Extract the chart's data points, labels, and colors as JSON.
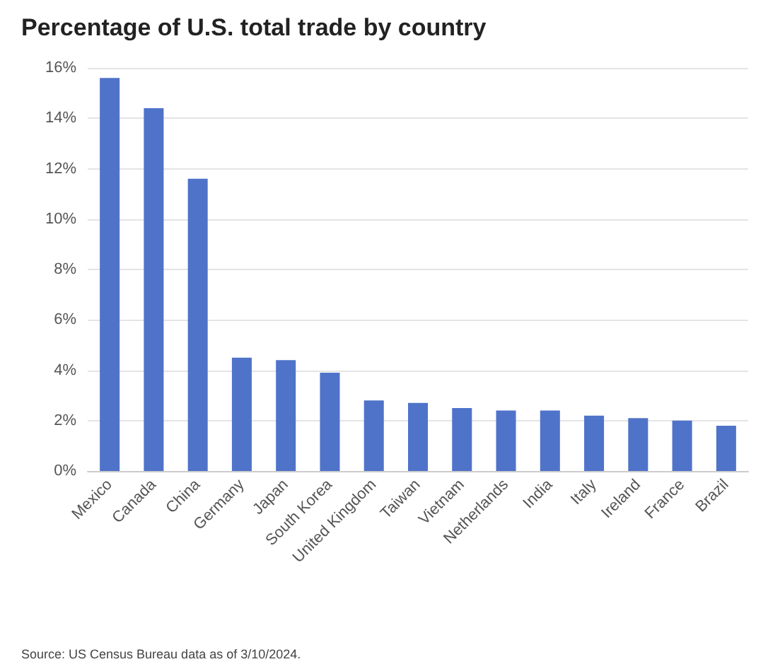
{
  "chart_data": {
    "type": "bar",
    "title": "Percentage of U.S. total trade by country",
    "categories": [
      "Mexico",
      "Canada",
      "China",
      "Germany",
      "Japan",
      "South Korea",
      "United Kingdom",
      "Taiwan",
      "Vietnam",
      "Netherlands",
      "India",
      "Italy",
      "Ireland",
      "France",
      "Brazil"
    ],
    "values": [
      15.6,
      14.4,
      11.6,
      4.5,
      4.4,
      3.9,
      2.8,
      2.7,
      2.5,
      2.4,
      2.4,
      2.2,
      2.1,
      2.0,
      1.8
    ],
    "color": "#4f73c9",
    "ylim": [
      0,
      16
    ],
    "yticks": [
      {
        "value": 0,
        "label": "0%"
      },
      {
        "value": 2,
        "label": "2%"
      },
      {
        "value": 4,
        "label": "4%"
      },
      {
        "value": 6,
        "label": "6%"
      },
      {
        "value": 8,
        "label": "8%"
      },
      {
        "value": 10,
        "label": "10%"
      },
      {
        "value": 12,
        "label": "12%"
      },
      {
        "value": 14,
        "label": "14%"
      },
      {
        "value": 16,
        "label": "16%"
      }
    ],
    "grid": true,
    "annotations": [
      "Source: US Census Bureau data as of 3/10/2024."
    ]
  }
}
